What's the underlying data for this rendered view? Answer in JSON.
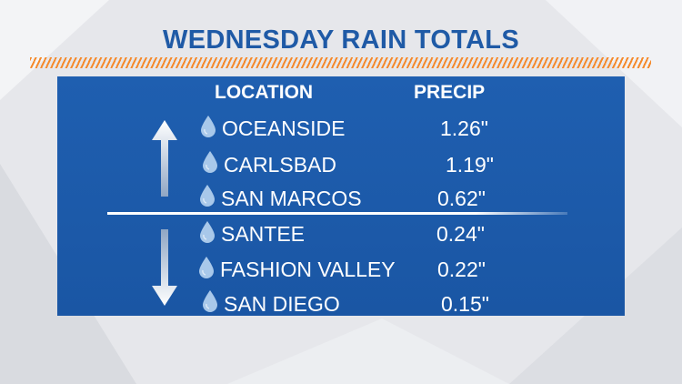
{
  "title": "WEDNESDAY RAIN TOTALS",
  "headers": {
    "location": "LOCATION",
    "precip": "PRECIP"
  },
  "rows": [
    {
      "location": "OCEANSIDE",
      "precip": "1.26\""
    },
    {
      "location": "CARLSBAD",
      "precip": "1.19\""
    },
    {
      "location": "SAN MARCOS",
      "precip": "0.62\""
    },
    {
      "location": "SANTEE",
      "precip": "0.24\""
    },
    {
      "location": "FASHION VALLEY",
      "precip": "0.22\""
    },
    {
      "location": "SAN DIEGO",
      "precip": "0.15\""
    }
  ],
  "icons": {
    "row_icon": "raindrop-icon",
    "up": "arrow-up-icon",
    "down": "arrow-down-icon"
  },
  "colors": {
    "title": "#1f5aa6",
    "panel": "#1a56a4",
    "accent_stripe": "#f58a2c",
    "drop": "#a8c8ea"
  }
}
